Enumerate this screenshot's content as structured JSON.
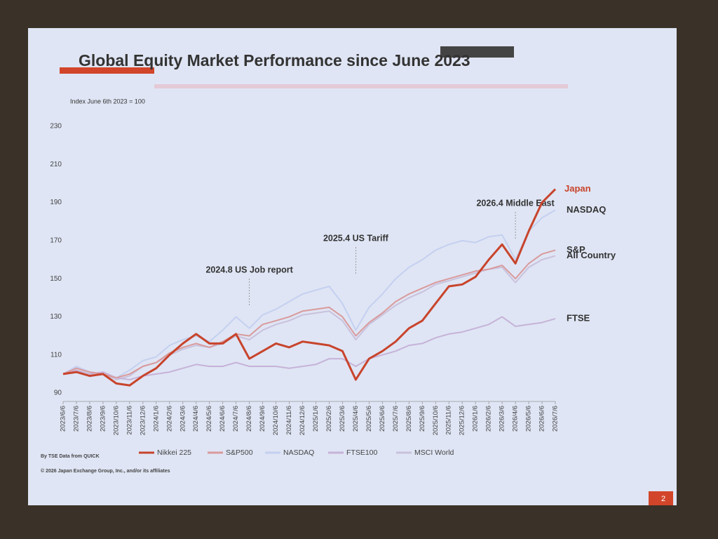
{
  "chart_data": {
    "type": "line",
    "title": "Global Equity Market Performance since June 2023",
    "y_axis_label": "Index June 6th 2023 = 100",
    "categories": [
      "2023/6/6",
      "2023/7/6",
      "2023/8/6",
      "2023/9/6",
      "2023/10/6",
      "2023/11/6",
      "2023/12/6",
      "2024/1/6",
      "2024/2/6",
      "2024/3/6",
      "2024/4/6",
      "2024/5/6",
      "2024/6/6",
      "2024/7/6",
      "2024/8/6",
      "2024/9/6",
      "2024/10/6",
      "2024/11/6",
      "2024/12/6",
      "2025/1/6",
      "2025/2/6",
      "2025/3/6",
      "2025/4/6",
      "2025/5/6",
      "2025/6/6",
      "2025/7/6",
      "2025/8/6",
      "2025/9/6",
      "2025/10/6",
      "2025/11/6",
      "2025/12/6",
      "2026/1/6",
      "2026/2/6",
      "2026/3/6",
      "2026/4/6",
      "2026/5/6",
      "2026/6/6",
      "2026/7/6"
    ],
    "series": [
      {
        "name": "MSCI World",
        "label": "All Country",
        "color": "#c9c1dc",
        "values": [
          100,
          103,
          101,
          100,
          97,
          99,
          104,
          106,
          110,
          113,
          115,
          114,
          116,
          120,
          118,
          123,
          126,
          128,
          131,
          132,
          133,
          128,
          118,
          126,
          131,
          136,
          140,
          143,
          147,
          149,
          151,
          153,
          155,
          156,
          148,
          156,
          160,
          162
        ]
      },
      {
        "name": "FTSE100",
        "label": "FTSE",
        "color": "#c6b3d9",
        "values": [
          100,
          102,
          100,
          101,
          98,
          97,
          99,
          100,
          101,
          103,
          105,
          104,
          104,
          106,
          104,
          104,
          104,
          103,
          104,
          105,
          108,
          108,
          104,
          108,
          110,
          112,
          115,
          116,
          119,
          121,
          122,
          124,
          126,
          130,
          125,
          126,
          127,
          129
        ]
      },
      {
        "name": "NASDAQ",
        "label": "NASDAQ",
        "color": "#c4d0f0",
        "values": [
          100,
          104,
          101,
          100,
          98,
          102,
          107,
          109,
          115,
          118,
          120,
          117,
          123,
          130,
          124,
          131,
          134,
          138,
          142,
          144,
          146,
          137,
          123,
          135,
          142,
          150,
          156,
          160,
          165,
          168,
          170,
          169,
          172,
          173,
          160,
          175,
          182,
          186
        ]
      },
      {
        "name": "S&P500",
        "label": "S&P",
        "color": "#d99a9c",
        "values": [
          100,
          103,
          101,
          100,
          98,
          100,
          104,
          106,
          111,
          114,
          116,
          114,
          117,
          121,
          120,
          126,
          128,
          130,
          133,
          134,
          135,
          130,
          120,
          127,
          132,
          138,
          142,
          145,
          148,
          150,
          152,
          154,
          155,
          157,
          150,
          158,
          163,
          165
        ]
      },
      {
        "name": "Nikkei 225",
        "label": "Japan",
        "color": "#c8442c",
        "values": [
          100,
          101,
          99,
          100,
          95,
          94,
          99,
          103,
          110,
          116,
          121,
          116,
          116,
          121,
          108,
          112,
          116,
          114,
          117,
          116,
          115,
          112,
          97,
          108,
          112,
          117,
          124,
          128,
          137,
          146,
          147,
          151,
          160,
          168,
          158,
          175,
          190,
          197
        ]
      }
    ],
    "legend_order": [
      4,
      3,
      2,
      1,
      0
    ],
    "annotations": [
      {
        "text": "2024.8 US Job report",
        "x": "2024/8/6"
      },
      {
        "text": "2025.4 US Tariff",
        "x": "2025/4/6"
      },
      {
        "text": "2026.4 Middle East",
        "x": "2026/4/6"
      }
    ],
    "ylim": [
      90,
      230
    ],
    "yticks": [
      90,
      110,
      130,
      150,
      170,
      190,
      210,
      230
    ],
    "grid": false,
    "source": "By TSE Data from QUICK",
    "copyright": "© 2026 Japan Exchange Group, Inc., and/or its affiliates",
    "page_number": 2
  }
}
